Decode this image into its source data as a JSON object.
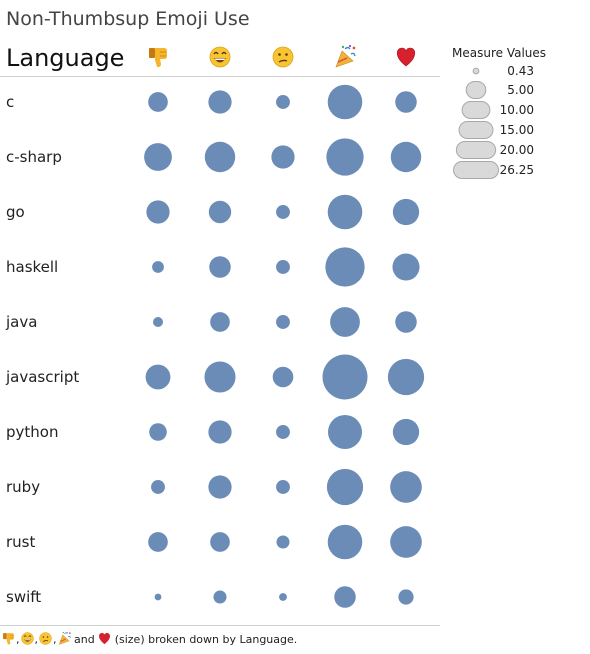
{
  "chart_data": {
    "type": "scatter",
    "title": "Non-Thumbsup Emoji Use",
    "row_header": "Language",
    "columns": [
      {
        "name": "thumbs-down",
        "icon": "thumbs-down-icon"
      },
      {
        "name": "smile",
        "icon": "smile-emoji-icon"
      },
      {
        "name": "confused",
        "icon": "confused-emoji-icon"
      },
      {
        "name": "tada",
        "icon": "party-popper-icon"
      },
      {
        "name": "heart",
        "icon": "red-heart-icon"
      }
    ],
    "categories": [
      "c",
      "c-sharp",
      "go",
      "haskell",
      "java",
      "javascript",
      "python",
      "ruby",
      "rust",
      "swift"
    ],
    "series": [
      {
        "name": "thumbs-down",
        "values": [
          5,
          10,
          7,
          1.8,
          1.3,
          8,
          4,
          2.5,
          5,
          0.6
        ]
      },
      {
        "name": "smile",
        "values": [
          7,
          12,
          6.5,
          6,
          5,
          12.5,
          7,
          7,
          5,
          2.2
        ]
      },
      {
        "name": "confused",
        "values": [
          2.5,
          7,
          2.5,
          2.5,
          2.5,
          5.5,
          2.5,
          2.5,
          2.2,
          0.8
        ]
      },
      {
        "name": "tada",
        "values": [
          15.5,
          18,
          15.5,
          20,
          11.5,
          26.25,
          15,
          17,
          15.5,
          6
        ]
      },
      {
        "name": "heart",
        "values": [
          6,
          12,
          9,
          9.5,
          6,
          17,
          9,
          13,
          13,
          3
        ]
      }
    ],
    "legend": {
      "title": "Measure Values",
      "placement": "top-right",
      "values": [
        0.43,
        5.0,
        10.0,
        15.0,
        20.0,
        26.25
      ],
      "labels": [
        "0.43",
        "5.00",
        "10.00",
        "15.00",
        "20.00",
        "26.25"
      ]
    },
    "caption_suffix": " and ",
    "caption_tail": " (size) broken down by Language.",
    "colors": {
      "mark": "#6a8cb6",
      "legend_fill": "#d9d9d9",
      "legend_stroke": "#a9a9a9",
      "divider": "#cfcfcf"
    }
  }
}
